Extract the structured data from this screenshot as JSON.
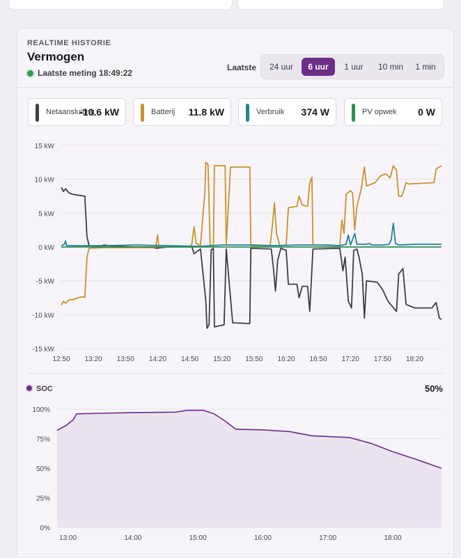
{
  "header": {
    "eyebrow": "REALTIME HISTORIE",
    "title": "Vermogen",
    "status": "Laatste meting 18:49:22"
  },
  "range": {
    "label": "Laatste",
    "options": [
      "24 uur",
      "6 uur",
      "1 uur",
      "10 min",
      "1 min"
    ],
    "selected": "6 uur"
  },
  "meters": [
    {
      "label": "Netaansluiting",
      "value": "-10.6 kW",
      "color": "#3a3d4b"
    },
    {
      "label": "Batterij",
      "value": "11.8 kW",
      "color": "#c8922c"
    },
    {
      "label": "Verbruik",
      "value": "374 W",
      "color": "#21829a"
    },
    {
      "label": "PV opwek",
      "value": "0 W",
      "color": "#2f8f55"
    }
  ],
  "chart_data": [
    {
      "type": "line",
      "title": "",
      "ylim": [
        -15,
        15
      ],
      "y_unit": "kW",
      "yticks": [
        "15 kW",
        "10 kW",
        "5 kW",
        "0 kW",
        "-5 kW",
        "-10 kW",
        "-15 kW"
      ],
      "xticks": [
        "12:50",
        "13:20",
        "13:50",
        "14:20",
        "14:50",
        "15:20",
        "15:50",
        "16:20",
        "16:50",
        "17:20",
        "17:50",
        "18:20"
      ],
      "grid": true,
      "series": [
        {
          "name": "Netaansluiting",
          "color": "#3a3d4b",
          "points": [
            [
              "12:50",
              8.8
            ],
            [
              "12:52",
              8.2
            ],
            [
              "12:54",
              8.6
            ],
            [
              "12:57",
              8.0
            ],
            [
              "13:00",
              7.8
            ],
            [
              "13:08",
              7.6
            ],
            [
              "13:12",
              7.5
            ],
            [
              "13:14",
              1.5
            ],
            [
              "13:16",
              0.2
            ],
            [
              "13:26",
              0.1
            ],
            [
              "13:30",
              0.3
            ],
            [
              "13:40",
              0.1
            ],
            [
              "14:00",
              0.0
            ],
            [
              "14:16",
              0.0
            ],
            [
              "14:18",
              -0.2
            ],
            [
              "14:30",
              0.0
            ],
            [
              "14:52",
              0.0
            ],
            [
              "14:54",
              -1.0
            ],
            [
              "15:00",
              -0.3
            ],
            [
              "15:05",
              -8.0
            ],
            [
              "15:06",
              -12.0
            ],
            [
              "15:08",
              -11.5
            ],
            [
              "15:10",
              -0.4
            ],
            [
              "15:12",
              -0.2
            ],
            [
              "15:13",
              -11.8
            ],
            [
              "15:22",
              -11.5
            ],
            [
              "15:24",
              -0.3
            ],
            [
              "15:30",
              -11.2
            ],
            [
              "15:46",
              -11.3
            ],
            [
              "15:47",
              -0.2
            ],
            [
              "16:06",
              -0.3
            ],
            [
              "16:08",
              -3.0
            ],
            [
              "16:10",
              -6.5
            ],
            [
              "16:12",
              -2.0
            ],
            [
              "16:15",
              -0.2
            ],
            [
              "16:20",
              -0.5
            ],
            [
              "16:22",
              -5.5
            ],
            [
              "16:30",
              -5.5
            ],
            [
              "16:32",
              -7.5
            ],
            [
              "16:35",
              -5.8
            ],
            [
              "16:40",
              -5.8
            ],
            [
              "16:42",
              -9.5
            ],
            [
              "16:45",
              -0.3
            ],
            [
              "17:10",
              -0.2
            ],
            [
              "17:13",
              -3.5
            ],
            [
              "17:15",
              -1.5
            ],
            [
              "17:18",
              -8.0
            ],
            [
              "17:21",
              -9.0
            ],
            [
              "17:23",
              -0.5
            ],
            [
              "17:26",
              -0.3
            ],
            [
              "17:28",
              -1.5
            ],
            [
              "17:31",
              -4.0
            ],
            [
              "17:33",
              -10.5
            ],
            [
              "17:35",
              -5.0
            ],
            [
              "17:45",
              -5.2
            ],
            [
              "17:50",
              -6.3
            ],
            [
              "17:55",
              -8.0
            ],
            [
              "18:03",
              -9.5
            ],
            [
              "18:05",
              -4.0
            ],
            [
              "18:09",
              -3.2
            ],
            [
              "18:12",
              -8.5
            ],
            [
              "18:20",
              -9.0
            ],
            [
              "18:36",
              -9.0
            ],
            [
              "18:40",
              -8.2
            ],
            [
              "18:43",
              -10.5
            ],
            [
              "18:45",
              -10.7
            ]
          ]
        },
        {
          "name": "Batterij",
          "color": "#c8922c",
          "points": [
            [
              "12:50",
              -8.6
            ],
            [
              "12:52",
              -8.0
            ],
            [
              "12:54",
              -8.3
            ],
            [
              "12:57",
              -7.8
            ],
            [
              "13:00",
              -7.8
            ],
            [
              "13:08",
              -7.4
            ],
            [
              "13:12",
              -7.4
            ],
            [
              "13:14",
              -1.5
            ],
            [
              "13:16",
              -0.2
            ],
            [
              "13:30",
              -0.1
            ],
            [
              "14:18",
              -0.1
            ],
            [
              "14:20",
              1.8
            ],
            [
              "14:21",
              0.0
            ],
            [
              "14:50",
              0.0
            ],
            [
              "14:52",
              0.5
            ],
            [
              "14:54",
              3.0
            ],
            [
              "14:56",
              0.5
            ],
            [
              "15:00",
              0.3
            ],
            [
              "15:04",
              8.0
            ],
            [
              "15:05",
              12.5
            ],
            [
              "15:07",
              12.2
            ],
            [
              "15:09",
              0.3
            ],
            [
              "15:12",
              0.2
            ],
            [
              "15:13",
              12.0
            ],
            [
              "15:20",
              12.0
            ],
            [
              "15:23",
              12.0
            ],
            [
              "15:24",
              0.3
            ],
            [
              "15:28",
              11.8
            ],
            [
              "15:46",
              11.8
            ],
            [
              "15:47",
              0.2
            ],
            [
              "16:05",
              0.2
            ],
            [
              "16:07",
              3.0
            ],
            [
              "16:09",
              6.5
            ],
            [
              "16:11",
              2.0
            ],
            [
              "16:14",
              0.2
            ],
            [
              "16:20",
              0.3
            ],
            [
              "16:22",
              5.8
            ],
            [
              "16:30",
              6.0
            ],
            [
              "16:32",
              7.5
            ],
            [
              "16:35",
              6.2
            ],
            [
              "16:40",
              6.0
            ],
            [
              "16:42",
              9.5
            ],
            [
              "16:44",
              10.3
            ],
            [
              "16:45",
              0.3
            ],
            [
              "17:10",
              0.2
            ],
            [
              "17:12",
              4.0
            ],
            [
              "17:14",
              2.0
            ],
            [
              "17:16",
              7.8
            ],
            [
              "17:20",
              8.3
            ],
            [
              "17:22",
              8.0
            ],
            [
              "17:24",
              2.5
            ],
            [
              "17:26",
              6.0
            ],
            [
              "17:30",
              8.5
            ],
            [
              "17:33",
              11.8
            ],
            [
              "17:35",
              9.0
            ],
            [
              "17:43",
              9.5
            ],
            [
              "17:48",
              10.5
            ],
            [
              "17:53",
              10.8
            ],
            [
              "17:57",
              10.2
            ],
            [
              "18:00",
              12.0
            ],
            [
              "18:03",
              11.3
            ],
            [
              "18:05",
              7.5
            ],
            [
              "18:08",
              7.5
            ],
            [
              "18:12",
              9.5
            ],
            [
              "18:14",
              9.3
            ],
            [
              "18:38",
              9.5
            ],
            [
              "18:40",
              11.5
            ],
            [
              "18:43",
              11.8
            ],
            [
              "18:45",
              12.0
            ]
          ]
        },
        {
          "name": "Verbruik",
          "color": "#21829a",
          "points": [
            [
              "12:50",
              0.2
            ],
            [
              "12:53",
              0.4
            ],
            [
              "12:54",
              0.9
            ],
            [
              "12:55",
              0.2
            ],
            [
              "13:20",
              0.2
            ],
            [
              "13:30",
              0.2
            ],
            [
              "14:00",
              0.3
            ],
            [
              "14:30",
              0.2
            ],
            [
              "15:00",
              0.1
            ],
            [
              "15:20",
              0.3
            ],
            [
              "15:50",
              0.3
            ],
            [
              "16:10",
              0.2
            ],
            [
              "16:30",
              0.3
            ],
            [
              "16:50",
              0.3
            ],
            [
              "17:00",
              0.3
            ],
            [
              "17:10",
              0.2
            ],
            [
              "17:16",
              0.4
            ],
            [
              "17:18",
              1.8
            ],
            [
              "17:20",
              0.3
            ],
            [
              "17:24",
              2.0
            ],
            [
              "17:26",
              0.4
            ],
            [
              "17:33",
              0.4
            ],
            [
              "17:38",
              0.5
            ],
            [
              "17:40",
              0.3
            ],
            [
              "17:50",
              0.3
            ],
            [
              "17:56",
              0.4
            ],
            [
              "17:58",
              1.0
            ],
            [
              "18:00",
              3.5
            ],
            [
              "18:02",
              0.5
            ],
            [
              "18:05",
              0.3
            ],
            [
              "18:20",
              0.4
            ],
            [
              "18:45",
              0.4
            ]
          ]
        },
        {
          "name": "PV opwek",
          "color": "#2f8f55",
          "points": [
            [
              "12:50",
              0.0
            ],
            [
              "18:45",
              0.0
            ]
          ]
        }
      ]
    },
    {
      "type": "area",
      "title": "",
      "legend": "SOC",
      "current_value": "50%",
      "color": "#6b2d86",
      "ylim": [
        0,
        100
      ],
      "yticks": [
        "100%",
        "75%",
        "50%",
        "25%",
        "0%"
      ],
      "xticks": [
        "13:00",
        "14:00",
        "15:00",
        "16:00",
        "17:00",
        "18:00"
      ],
      "grid": true,
      "points": [
        [
          "12:50",
          82
        ],
        [
          "12:58",
          86
        ],
        [
          "13:05",
          91
        ],
        [
          "13:08",
          96
        ],
        [
          "13:30",
          96.5
        ],
        [
          "14:00",
          97
        ],
        [
          "14:40",
          97.5
        ],
        [
          "14:50",
          99
        ],
        [
          "15:05",
          99
        ],
        [
          "15:15",
          96
        ],
        [
          "15:25",
          90
        ],
        [
          "15:35",
          83
        ],
        [
          "16:00",
          82.5
        ],
        [
          "16:25",
          81
        ],
        [
          "16:45",
          77.5
        ],
        [
          "17:20",
          76
        ],
        [
          "17:40",
          71
        ],
        [
          "18:00",
          64
        ],
        [
          "18:20",
          58
        ],
        [
          "18:45",
          50
        ]
      ]
    }
  ]
}
